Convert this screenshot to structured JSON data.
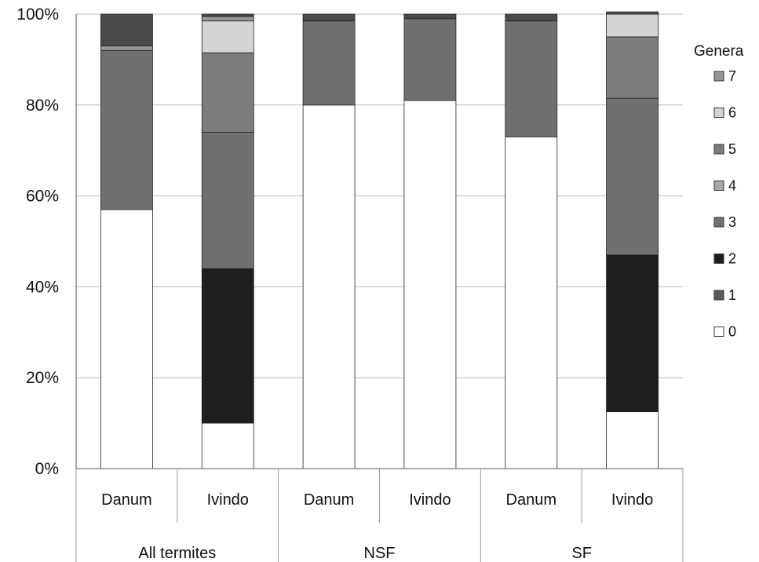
{
  "chart_data": {
    "type": "bar",
    "stacked": "percent",
    "groups": [
      "All termites",
      "NSF",
      "SF"
    ],
    "categories": [
      "Danum",
      "Ivindo",
      "Danum",
      "Ivindo",
      "Danum",
      "Ivindo"
    ],
    "category_group": [
      0,
      0,
      1,
      1,
      2,
      2
    ],
    "yticks": [
      "0%",
      "20%",
      "40%",
      "60%",
      "80%",
      "100%"
    ],
    "ylim": [
      0,
      100
    ],
    "grid": true,
    "legend": {
      "title": "Genera",
      "position": "right"
    },
    "series": [
      {
        "name": "0",
        "color": "#ffffff",
        "values": [
          57,
          10,
          80,
          81,
          73,
          12.5
        ]
      },
      {
        "name": "1",
        "color": "#5a5a5a",
        "values": [
          0,
          0,
          0,
          0,
          0,
          0
        ]
      },
      {
        "name": "2",
        "color": "#1e1e1e",
        "values": [
          0,
          34,
          0,
          0,
          0,
          34.5
        ]
      },
      {
        "name": "3",
        "color": "#707070",
        "values": [
          35,
          30,
          18.5,
          18,
          25.5,
          34.5
        ]
      },
      {
        "name": "4",
        "color": "#a8a8a8",
        "values": [
          0,
          0,
          0,
          0,
          0,
          0
        ]
      },
      {
        "name": "5",
        "color": "#7c7c7c",
        "values": [
          0,
          17.5,
          0,
          0,
          0,
          13.5
        ]
      },
      {
        "name": "6",
        "color": "#d4d4d4",
        "values": [
          0,
          7,
          0,
          0,
          0,
          5
        ]
      },
      {
        "name": "7",
        "color": "#969696",
        "values": [
          1,
          1,
          0,
          0,
          0,
          0
        ]
      },
      {
        "name": "1",
        "color": "#4a4a4a",
        "values": [
          7,
          0.5,
          1.5,
          1,
          1.5,
          0.5
        ]
      }
    ]
  }
}
